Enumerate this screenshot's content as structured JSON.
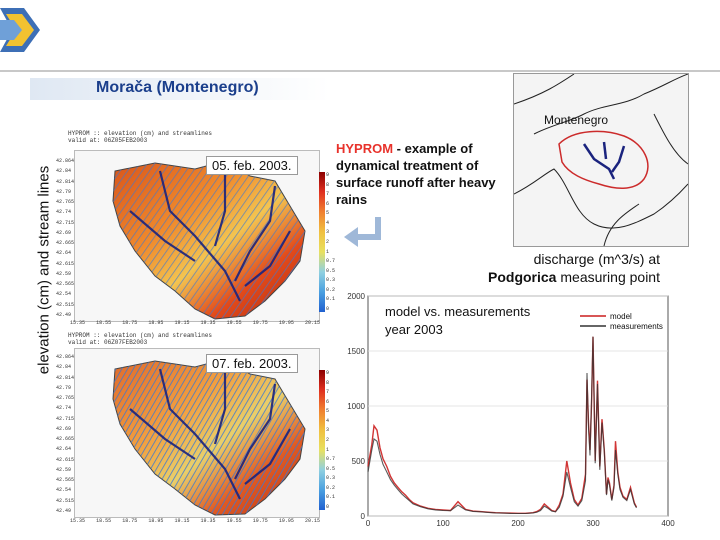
{
  "slide": {
    "title": "Morača (Montenegro)",
    "vertical_label": "elevation (cm) and stream lines",
    "annotation_hyprom": "HYPROM",
    "annotation_rest": " - example of dynamical treatment of surface runoff after heavy rains",
    "inset_label": "Montenegro",
    "discharge_line1": "discharge (m^3/s) at",
    "discharge_strong": "Podgorica",
    "discharge_line2_rest": " measuring point"
  },
  "maps": [
    {
      "date": "05. feb. 2003.",
      "header_line1": "HYPROM  ::  elevation (cm) and streamlines",
      "header_line2": "valid at: 06Z05FEB2003"
    },
    {
      "date": "07. feb. 2003.",
      "header_line1": "HYPROM  ::  elevation (cm) and streamlines",
      "header_line2": "valid at: 06Z07FEB2003"
    }
  ],
  "map_axis": {
    "yticks": [
      "42.864",
      "42.84",
      "42.814",
      "42.79",
      "42.765",
      "42.74",
      "42.715",
      "42.69",
      "42.665",
      "42.64",
      "42.615",
      "42.59",
      "42.565",
      "42.54",
      "42.515",
      "42.49"
    ],
    "xticks": [
      "15.35",
      "18.55",
      "18.75",
      "18.95",
      "19.15",
      "19.35",
      "19.55",
      "19.75",
      "19.95",
      "20.15"
    ],
    "colorbar_ticks": [
      "9",
      "8",
      "7",
      "6",
      "5",
      "4",
      "3",
      "2",
      "1",
      "0.7",
      "0.5",
      "0.3",
      "0.2",
      "0.1",
      "0"
    ]
  },
  "colors": {
    "title": "#1b3f8c",
    "hyprom": "#e8322b",
    "model": "#cc1f1f",
    "measurements": "#333333",
    "basin_outline": "#cc2b2b",
    "rivers": "#1a237e"
  },
  "chart_data": {
    "type": "line",
    "title": "model vs. measurements",
    "subtitle": "year 2003",
    "xlim": [
      0,
      400
    ],
    "ylim": [
      0,
      2000
    ],
    "xticks": [
      0,
      100,
      200,
      300,
      400
    ],
    "yticks": [
      0,
      500,
      1000,
      1500,
      2000
    ],
    "legend_position": "top-right",
    "series": [
      {
        "name": "model",
        "color": "#cc1f1f",
        "x": [
          0,
          5,
          8,
          12,
          16,
          20,
          25,
          30,
          35,
          40,
          45,
          50,
          55,
          60,
          70,
          80,
          90,
          100,
          110,
          120,
          130,
          140,
          150,
          160,
          170,
          180,
          190,
          200,
          210,
          220,
          225,
          230,
          235,
          240,
          245,
          250,
          255,
          260,
          265,
          270,
          275,
          280,
          285,
          290,
          292,
          294,
          296,
          298,
          300,
          303,
          306,
          309,
          312,
          315,
          318,
          320,
          322,
          325,
          328,
          330,
          333,
          336,
          340,
          345,
          350,
          355,
          358
        ],
        "y": [
          450,
          650,
          820,
          780,
          620,
          520,
          450,
          360,
          300,
          260,
          220,
          190,
          150,
          120,
          90,
          70,
          60,
          55,
          50,
          130,
          60,
          45,
          40,
          35,
          30,
          28,
          26,
          25,
          25,
          30,
          40,
          60,
          110,
          80,
          50,
          40,
          100,
          200,
          500,
          300,
          150,
          100,
          160,
          380,
          1240,
          850,
          600,
          1000,
          1630,
          500,
          1230,
          450,
          880,
          600,
          200,
          350,
          300,
          150,
          280,
          680,
          400,
          260,
          180,
          150,
          260,
          120,
          80
        ]
      },
      {
        "name": "measurements",
        "color": "#333333",
        "x": [
          0,
          5,
          8,
          12,
          16,
          20,
          25,
          30,
          35,
          40,
          45,
          50,
          55,
          60,
          70,
          80,
          90,
          100,
          110,
          120,
          130,
          140,
          150,
          160,
          170,
          180,
          190,
          200,
          210,
          220,
          225,
          230,
          235,
          240,
          245,
          250,
          255,
          260,
          265,
          270,
          275,
          280,
          285,
          290,
          292,
          294,
          296,
          298,
          300,
          303,
          306,
          309,
          312,
          315,
          318,
          320,
          322,
          325,
          328,
          330,
          333,
          336,
          340,
          345,
          350,
          355,
          358
        ],
        "y": [
          400,
          600,
          700,
          680,
          560,
          470,
          400,
          330,
          280,
          240,
          200,
          170,
          140,
          110,
          85,
          65,
          55,
          50,
          48,
          100,
          55,
          42,
          38,
          33,
          28,
          26,
          24,
          23,
          23,
          28,
          35,
          50,
          90,
          70,
          45,
          38,
          80,
          180,
          400,
          260,
          130,
          90,
          140,
          320,
          1300,
          800,
          550,
          1050,
          1630,
          480,
          1200,
          420,
          850,
          580,
          190,
          330,
          280,
          140,
          260,
          600,
          380,
          240,
          170,
          140,
          240,
          110,
          75
        ]
      }
    ]
  }
}
